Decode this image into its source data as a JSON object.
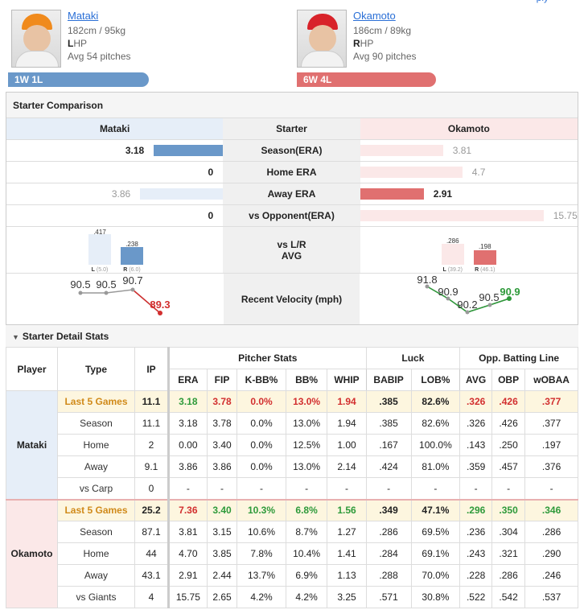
{
  "header": {
    "top_link": "ply",
    "left": {
      "name": "Mataki",
      "size": "182cm / 95kg",
      "hand_letter": "L",
      "hand_rest": "HP",
      "avg_pitches": "Avg 54 pitches",
      "record": "1W 1L",
      "cap_color": "#f08a1c"
    },
    "right": {
      "name": "Okamoto",
      "size": "186cm / 89kg",
      "hand_letter": "R",
      "hand_rest": "HP",
      "avg_pitches": "Avg 90 pitches",
      "record": "6W 4L",
      "cap_color": "#d8232a"
    }
  },
  "comparison": {
    "title": "Starter Comparison",
    "col_left": "Mataki",
    "col_mid": "Starter",
    "col_right": "Okamoto",
    "rows": [
      {
        "label": "Season(ERA)",
        "left": "3.18",
        "right": "3.81",
        "left_strong": true,
        "left_frac": 0.32,
        "right_frac": 0.38
      },
      {
        "label": "Home ERA",
        "left": "0",
        "right": "4.7",
        "left_strong": true,
        "left_frac": 0.0,
        "right_frac": 0.47
      },
      {
        "label": "Away ERA",
        "left": "3.86",
        "right": "2.91",
        "left_strong": false,
        "left_frac": 0.38,
        "right_frac": 0.29
      },
      {
        "label": "vs Opponent(ERA)",
        "left": "0",
        "right": "15.75",
        "left_strong": true,
        "left_frac": 0.0,
        "right_frac": 0.84
      }
    ],
    "lr": {
      "label1": "vs L/R",
      "label2": "AVG",
      "left": {
        "l_val": ".417",
        "r_val": ".238",
        "l_lab": "L",
        "l_n": "(5.0)",
        "r_lab": "R",
        "r_n": "(6.0)"
      },
      "right": {
        "l_val": ".286",
        "r_val": ".198",
        "l_lab": "L",
        "l_n": "(39.2)",
        "r_lab": "R",
        "r_n": "(46.1)"
      }
    },
    "velocity": {
      "label": "Recent Velocity (mph)",
      "left": [
        "90.5",
        "90.5",
        "90.7",
        "89.3"
      ],
      "right": [
        "91.8",
        "90.9",
        "90.2",
        "90.5",
        "90.9"
      ]
    }
  },
  "detail": {
    "title": "Starter Detail Stats",
    "headers": {
      "player": "Player",
      "type": "Type",
      "ip": "IP",
      "pitcher": "Pitcher Stats",
      "luck": "Luck",
      "opp": "Opp. Batting Line"
    },
    "cols": [
      "ERA",
      "FIP",
      "K-BB%",
      "BB%",
      "WHIP",
      "BABIP",
      "LOB%",
      "AVG",
      "OBP",
      "wOBAA"
    ],
    "mataki": {
      "name": "Mataki",
      "rows": [
        {
          "type": "Last 5 Games",
          "ip": "11.1",
          "vals": [
            "3.18",
            "3.78",
            "0.0%",
            "13.0%",
            "1.94",
            ".385",
            "82.6%",
            ".326",
            ".426",
            ".377"
          ]
        },
        {
          "type": "Season",
          "ip": "11.1",
          "vals": [
            "3.18",
            "3.78",
            "0.0%",
            "13.0%",
            "1.94",
            ".385",
            "82.6%",
            ".326",
            ".426",
            ".377"
          ]
        },
        {
          "type": "Home",
          "ip": "2",
          "vals": [
            "0.00",
            "3.40",
            "0.0%",
            "12.5%",
            "1.00",
            ".167",
            "100.0%",
            ".143",
            ".250",
            ".197"
          ]
        },
        {
          "type": "Away",
          "ip": "9.1",
          "vals": [
            "3.86",
            "3.86",
            "0.0%",
            "13.0%",
            "2.14",
            ".424",
            "81.0%",
            ".359",
            ".457",
            ".376"
          ]
        },
        {
          "type": "vs Carp",
          "ip": "0",
          "vals": [
            "-",
            "-",
            "-",
            "-",
            "-",
            "-",
            "-",
            "-",
            "-",
            "-"
          ]
        }
      ]
    },
    "okamoto": {
      "name": "Okamoto",
      "rows": [
        {
          "type": "Last 5 Games",
          "ip": "25.2",
          "vals": [
            "7.36",
            "3.40",
            "10.3%",
            "6.8%",
            "1.56",
            ".349",
            "47.1%",
            ".296",
            ".350",
            ".346"
          ]
        },
        {
          "type": "Season",
          "ip": "87.1",
          "vals": [
            "3.81",
            "3.15",
            "10.6%",
            "8.7%",
            "1.27",
            ".286",
            "69.5%",
            ".236",
            ".304",
            ".286"
          ]
        },
        {
          "type": "Home",
          "ip": "44",
          "vals": [
            "4.70",
            "3.85",
            "7.8%",
            "10.4%",
            "1.41",
            ".284",
            "69.1%",
            ".243",
            ".321",
            ".290"
          ]
        },
        {
          "type": "Away",
          "ip": "43.1",
          "vals": [
            "2.91",
            "2.44",
            "13.7%",
            "6.9%",
            "1.13",
            ".288",
            "70.0%",
            ".228",
            ".286",
            ".246"
          ]
        },
        {
          "type": "vs Giants",
          "ip": "4",
          "vals": [
            "15.75",
            "2.65",
            "4.2%",
            "4.2%",
            "3.25",
            ".571",
            "30.8%",
            ".522",
            ".542",
            ".537"
          ]
        }
      ]
    },
    "colors": {
      "mataki_l5": [
        "green",
        "red",
        "red",
        "red",
        "red",
        "",
        "",
        "red",
        "red",
        "red"
      ],
      "okamoto_l5": [
        "red",
        "green",
        "green",
        "green",
        "green",
        "",
        "",
        "green",
        "green",
        "green"
      ]
    }
  }
}
